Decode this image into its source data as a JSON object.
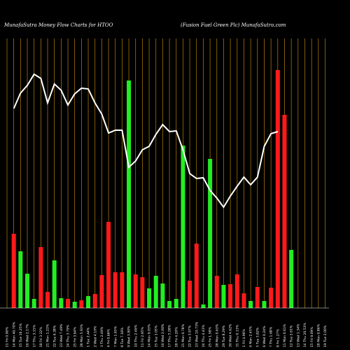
{
  "header": {
    "left": "MunafaSutra  Money Flow  Charts for HTOO",
    "right": "(Fusion  Fuel Green  Plc) MunafaSutra.com"
  },
  "colors": {
    "background": "#000000",
    "grid": "#b8860b",
    "up": "#22ee22",
    "down": "#ff1a1a",
    "line": "#ffffff"
  },
  "chart_data": {
    "type": "bar",
    "grid": true,
    "categories": [
      "11 Fri 0.90%",
      "14 Mon 40.70%",
      "15 Tue 16.25%",
      "16 Wed 2.17%",
      "17 Thu 3.15%",
      "18 Fri 3.32%",
      "21 Mon 1.23%",
      "22 Tue 6.38%",
      "23 Wed 7.49%",
      "24 Thu 3.79%",
      "25 Fri 3.64%",
      "28 Mon 5.93%",
      "1 Tue 2.44%",
      "2 Wed 4.10%",
      "3 Thu 2.49%",
      "4 Fri 0.66%",
      "7 Mon 1.65%",
      "8 Tue 7.18%",
      "9 Wed 3.90%",
      "10 Thu 2.46%",
      "11 Fri 2.95%",
      "14 Mon 9.03%",
      "15 Tue 3.05%",
      "16 Wed 2.00%",
      "17 Thu 5.28%",
      "18 Fri 4.20%",
      "21 Mon 0.78%",
      "22 Tue 3.97%",
      "23 Wed 10.73%",
      "24 Thu 4.43%",
      "25 Fri 1.58%",
      "28 Mon 0.63%",
      "29 Tue 8.29%",
      "30 Wed 4.62%",
      "31 Thu 0.13%",
      "1 Fri 4.96%",
      "4 Mon 2.45%",
      "5 Tue 3.82%",
      "6 Wed 0.24%",
      "7 Thu 1.68%",
      "8 Fri 1.27%",
      "11 Mon 0.61%",
      "12 Tue 2.61%",
      "13 Wed 1.34%",
      "14 Thu 20.53%",
      "15 Fri 9.09%",
      "18 Mon 0.86%",
      "19 Tue 2.00%"
    ],
    "bar_colors": [
      "none",
      "red",
      "green",
      "green",
      "green",
      "red",
      "red",
      "green",
      "green",
      "red",
      "green",
      "red",
      "green",
      "red",
      "red",
      "red",
      "red",
      "red",
      "green",
      "red",
      "red",
      "green",
      "green",
      "green",
      "green",
      "green",
      "green",
      "red",
      "red",
      "green",
      "green",
      "red",
      "green",
      "red",
      "red",
      "red",
      "green",
      "red",
      "green",
      "red",
      "red",
      "red",
      "green",
      "green",
      "red",
      "green",
      "green",
      "green"
    ],
    "bar_values": [
      0,
      106,
      81,
      49,
      13,
      87,
      23,
      68,
      14,
      13,
      9,
      11,
      17,
      20,
      47,
      123,
      51,
      51,
      325,
      48,
      44,
      28,
      46,
      35,
      10,
      13,
      232,
      39,
      92,
      5,
      213,
      46,
      33,
      34,
      48,
      21,
      10,
      30,
      10,
      29,
      340,
      276,
      83,
      0,
      0,
      0,
      0,
      0
    ],
    "line_values": [
      0,
      285,
      307,
      318,
      334,
      328,
      293,
      320,
      311,
      290,
      306,
      314,
      313,
      293,
      277,
      250,
      254,
      254,
      201,
      210,
      226,
      231,
      248,
      262,
      252,
      253,
      226,
      192,
      185,
      186,
      168,
      157,
      144,
      160,
      174,
      187,
      176,
      187,
      231,
      249,
      252,
      0,
      0,
      0,
      0,
      0,
      0,
      0
    ]
  }
}
